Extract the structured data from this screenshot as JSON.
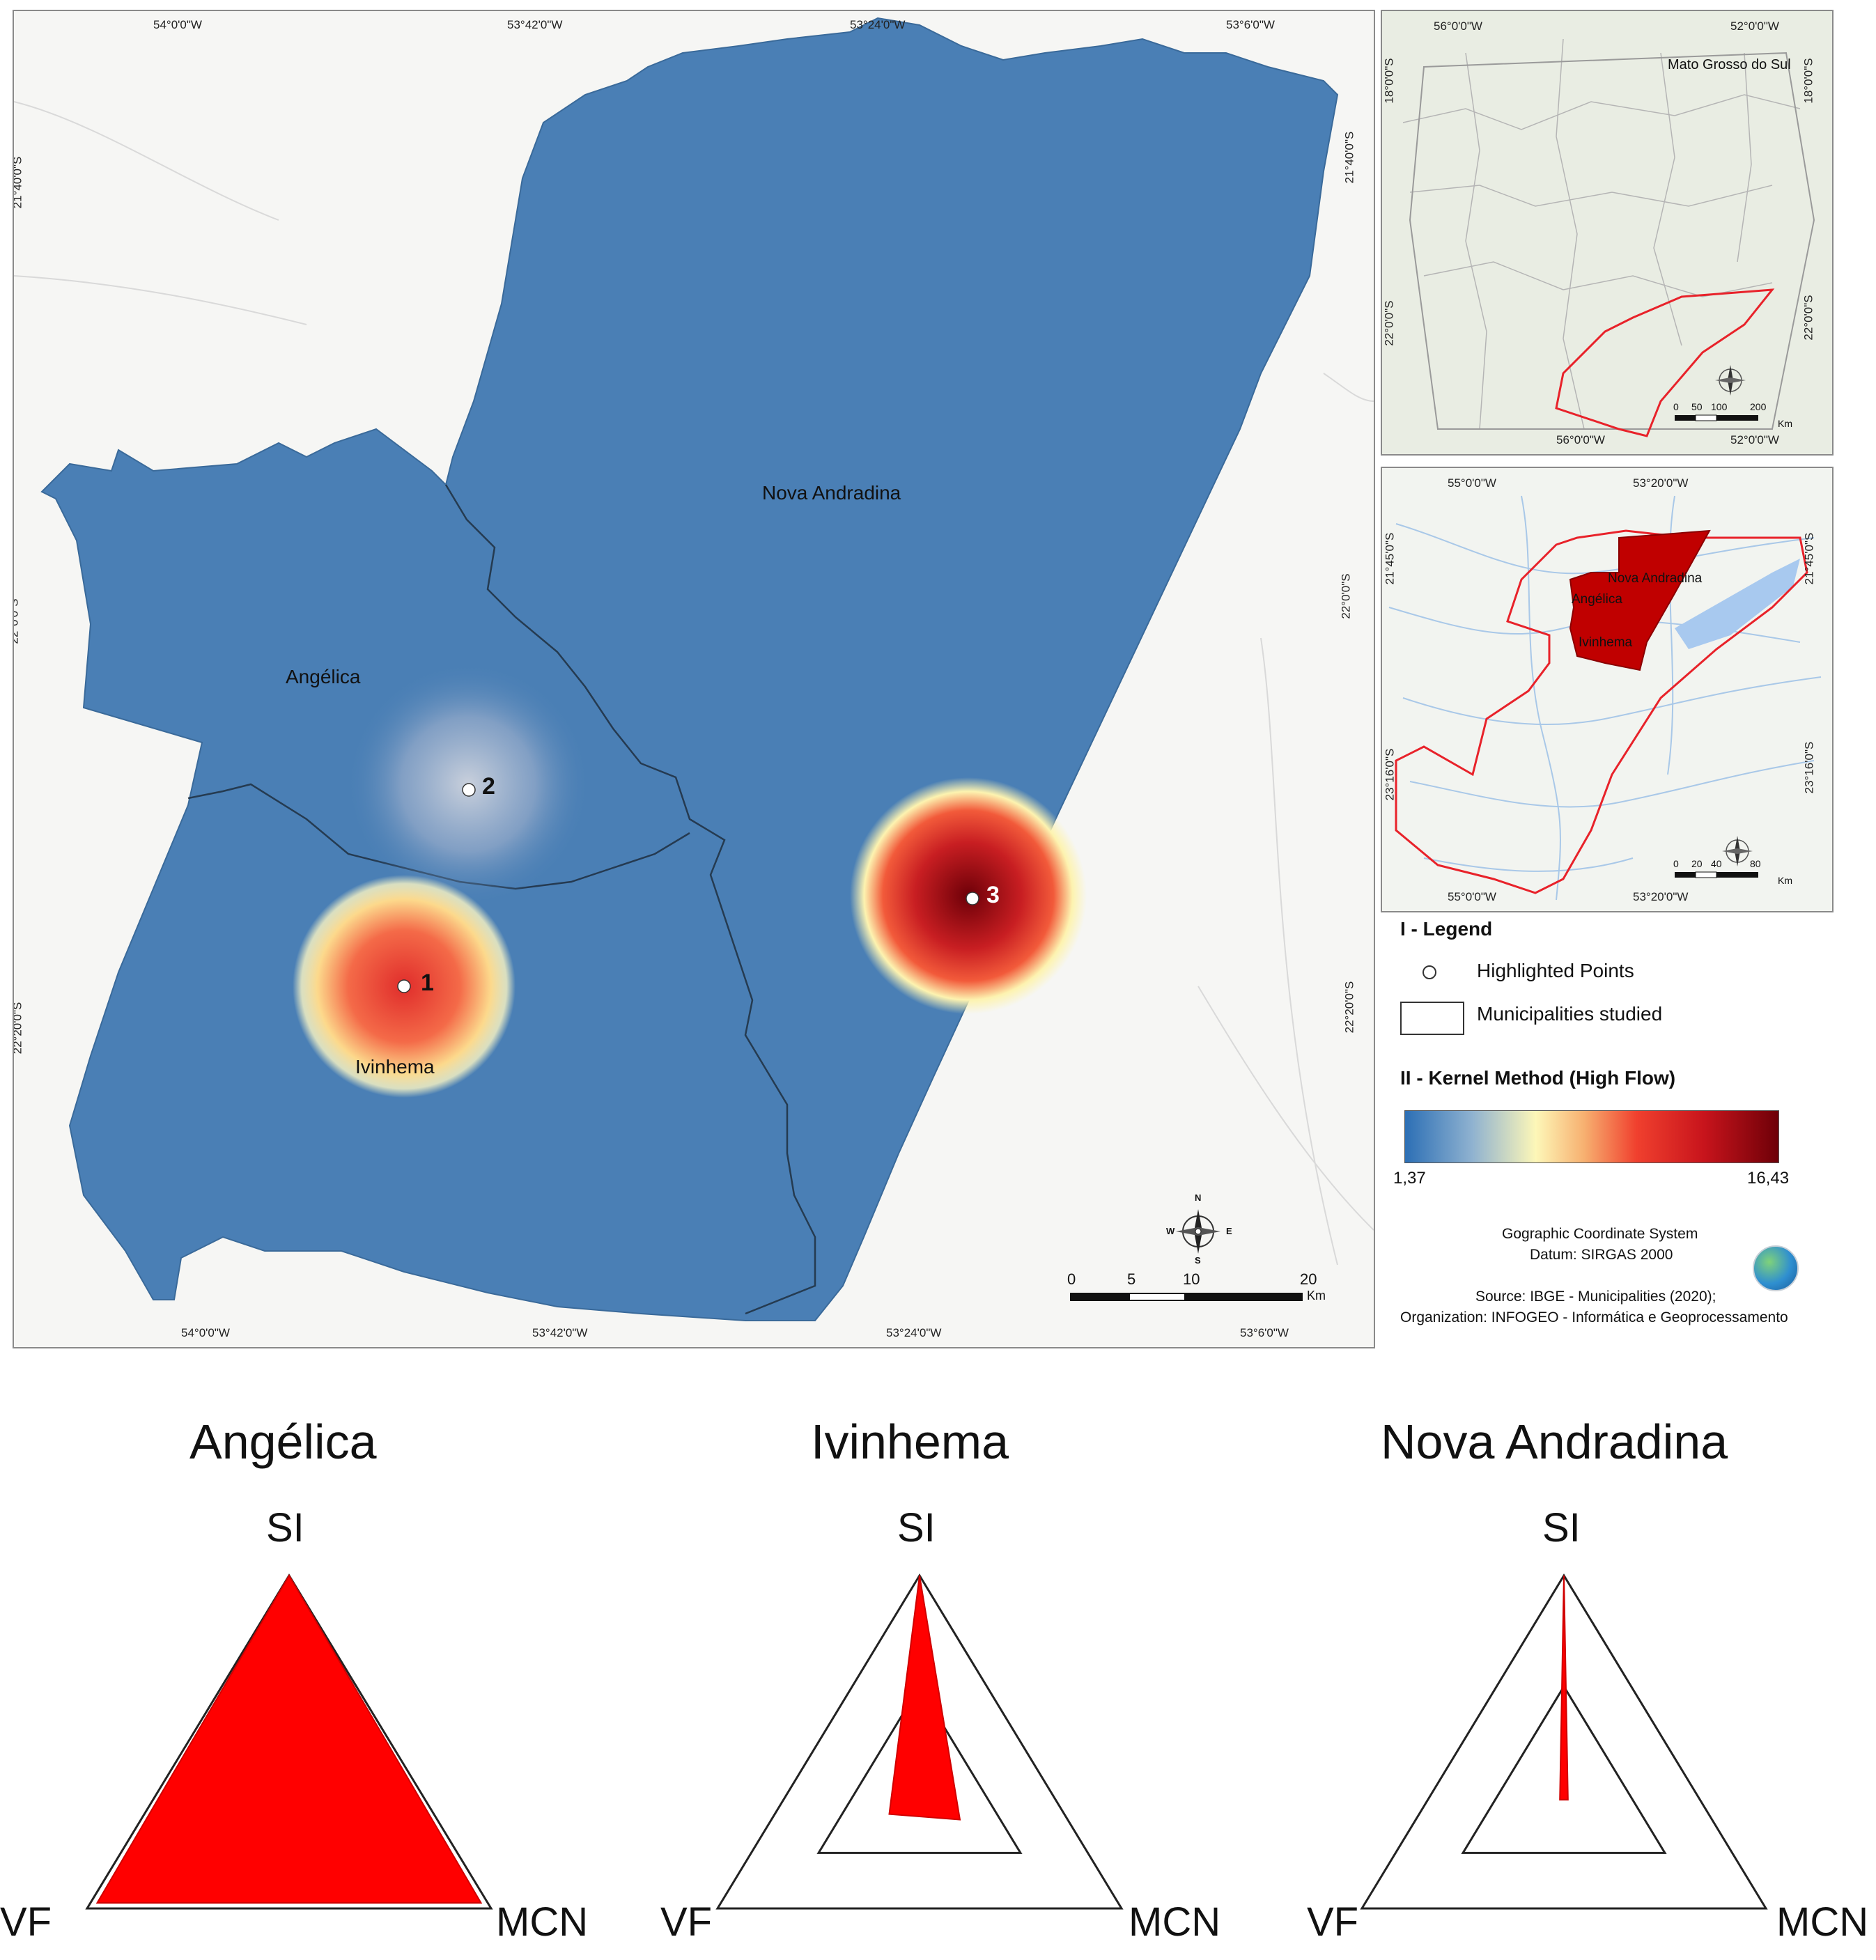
{
  "main_map": {
    "top_coords": [
      "54°0'0\"W",
      "53°42'0\"W",
      "53°24'0\"W",
      "53°6'0\"W"
    ],
    "bottom_coords": [
      "54°0'0\"W",
      "53°42'0\"W",
      "53°24'0\"W",
      "53°6'0\"W"
    ],
    "left_coords": [
      "21°40'0\"S",
      "22°0'0\"S",
      "22°20'0\"S"
    ],
    "right_coords": [
      "21°40'0\"S",
      "22°0'0\"S",
      "22°20'0\"S"
    ],
    "municipalities": [
      "Nova Andradina",
      "Angélica",
      "Ivinhema"
    ],
    "points": [
      {
        "label": "1",
        "kernel": "high",
        "color": "#e8473a"
      },
      {
        "label": "2",
        "kernel": "low",
        "color": "#9aaac4"
      },
      {
        "label": "3",
        "kernel": "very high",
        "color": "#b3101a"
      }
    ],
    "scale": {
      "ticks": [
        "0",
        "5",
        "10",
        "20"
      ],
      "unit": "Km"
    },
    "compass": {
      "n": "N",
      "s": "S",
      "e": "E",
      "w": "W"
    },
    "fill_color": "#4a7fb5"
  },
  "inset_state": {
    "title": "Mato Grosso do Sul",
    "top_coords": [
      "56°0'0\"W",
      "52°0'0\"W"
    ],
    "bottom_coords": [
      "56°0'0\"W",
      "52°0'0\"W"
    ],
    "left_coords": [
      "18°0'0\"S",
      "22°0'0\"S"
    ],
    "right_coords": [
      "18°0'0\"S",
      "22°0'0\"S"
    ],
    "scale": {
      "ticks": [
        "0",
        "50",
        "100",
        "200"
      ],
      "unit": "Km"
    }
  },
  "inset_region": {
    "labels": [
      "Nova Andradina",
      "Angélica",
      "Ivinhema"
    ],
    "top_coords": [
      "55°0'0\"W",
      "53°20'0\"W"
    ],
    "bottom_coords": [
      "55°0'0\"W",
      "53°20'0\"W"
    ],
    "left_coords": [
      "21°45'0\"S",
      "23°16'0\"S"
    ],
    "right_coords": [
      "21°45'0\"S",
      "23°16'0\"S"
    ],
    "scale": {
      "ticks": [
        "0",
        "20",
        "40",
        "80"
      ],
      "unit": "Km"
    }
  },
  "legend": {
    "title": "I - Legend",
    "items": [
      "Highlighted Points",
      "Municipalities studied"
    ],
    "kernel_title": "II - Kernel Method (High Flow)",
    "kernel_min": "1,37",
    "kernel_max": "16,43",
    "colors": [
      "#2c6fb5",
      "#fdf7b8",
      "#f0402e",
      "#6e0008"
    ]
  },
  "credits": {
    "line1": "Gographic Coordinate System",
    "line2": "Datum: SIRGAS 2000",
    "line3": "Source: IBGE - Municipalities (2020);",
    "line4": "Organization: INFOGEO - Informática e Geoprocessamento"
  },
  "triangles": [
    {
      "title": "Angélica",
      "top": "SI",
      "left": "VF",
      "right": "MCN",
      "si": 1.0,
      "vf": 0.95,
      "mcn": 0.95
    },
    {
      "title": "Ivinhema",
      "top": "SI",
      "left": "VF",
      "right": "MCN",
      "si": 1.0,
      "vf": 0.15,
      "mcn": 0.2
    },
    {
      "title": "Nova Andradina",
      "top": "SI",
      "left": "VF",
      "right": "MCN",
      "si": 1.0,
      "vf": 0.02,
      "mcn": 0.02
    }
  ]
}
